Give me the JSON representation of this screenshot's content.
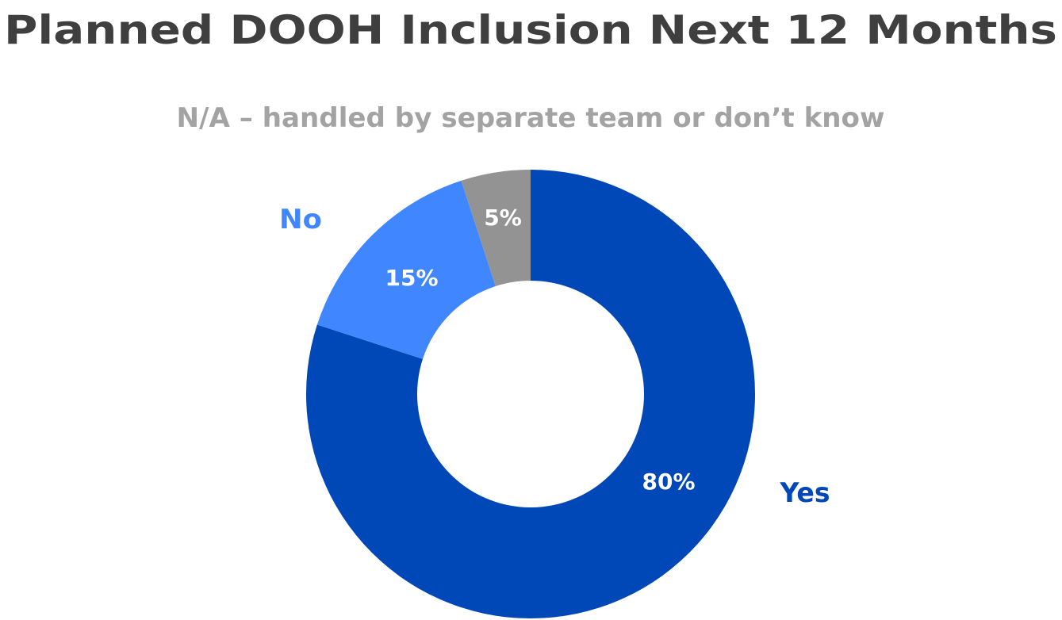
{
  "chart_data": {
    "type": "pie",
    "title": "Planned DOOH Inclusion Next 12 Months",
    "donut": true,
    "slices": [
      {
        "label": "Yes",
        "value": 80,
        "value_label": "80%",
        "color": "#0047b8"
      },
      {
        "label": "No",
        "value": 15,
        "value_label": "15%",
        "color": "#3f86ff"
      },
      {
        "label": "N/A – handled by separate team or don’t know",
        "value": 5,
        "value_label": "5%",
        "color": "#939393"
      }
    ]
  }
}
